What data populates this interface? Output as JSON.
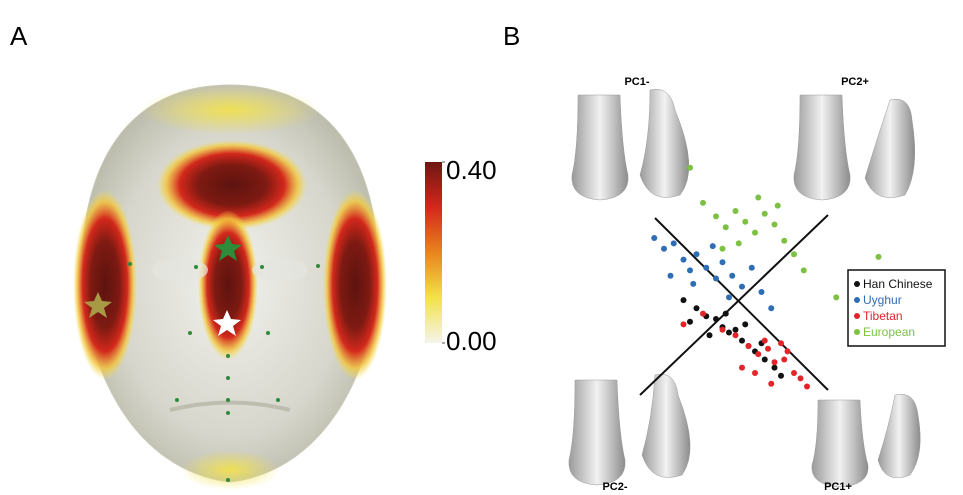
{
  "panel_labels": [
    "A",
    "B"
  ],
  "chart_data": [
    {
      "type": "colorbar",
      "clim": [
        0,
        0.4
      ],
      "cticks": [
        {
          "value": 0.4,
          "label": "0.40"
        },
        {
          "value": 0,
          "label": "0.00"
        }
      ],
      "colors": [
        "#f4f4ec",
        "#f3e24a",
        "#e8841e",
        "#d3281c",
        "#6e1712"
      ]
    },
    {
      "type": "scatter",
      "xlim": [
        -4,
        4
      ],
      "ylim": [
        -4,
        5
      ],
      "legend": "right",
      "annotations": [
        "PC1-",
        "PC2+",
        "PC2-",
        "PC1+"
      ],
      "series": [
        {
          "name": "Han Chinese",
          "color": "#111111",
          "x": [
            -2.2,
            -1.8,
            -1.5,
            -1.2,
            -1.0,
            -0.8,
            -0.6,
            -0.4,
            -0.2,
            0.0,
            0.3,
            0.6,
            -1.4,
            -0.9,
            -0.3,
            0.2,
            -2.0,
            0.8
          ],
          "y": [
            -0.3,
            -0.6,
            -0.9,
            -1.0,
            -1.3,
            -1.5,
            -1.4,
            -1.8,
            -2.0,
            -2.2,
            -2.5,
            -2.8,
            -1.6,
            -0.8,
            -1.2,
            -1.9,
            -1.1,
            -3.1
          ]
        },
        {
          "name": "Uyghur",
          "color": "#2f6db5",
          "x": [
            -3.1,
            -2.8,
            -2.5,
            -2.2,
            -2.0,
            -1.8,
            -1.5,
            -1.2,
            -1.0,
            -0.7,
            -0.4,
            -0.1,
            0.2,
            -2.6,
            -1.3,
            -0.8,
            0.5,
            -1.9
          ],
          "y": [
            2.0,
            1.6,
            1.8,
            1.2,
            0.8,
            1.4,
            0.9,
            0.5,
            1.1,
            0.6,
            0.2,
            0.9,
            0.0,
            0.6,
            1.7,
            -0.2,
            -0.6,
            0.3
          ]
        },
        {
          "name": "Tibetan",
          "color": "#e3252a",
          "x": [
            -1.6,
            -1.0,
            -0.6,
            -0.2,
            0.1,
            0.4,
            0.6,
            0.9,
            1.2,
            1.4,
            -0.4,
            0.3,
            0.8,
            1.6,
            -2.2,
            0.0,
            1.0,
            0.5
          ],
          "y": [
            -0.8,
            -1.4,
            -1.6,
            -2.0,
            -2.3,
            -2.1,
            -2.6,
            -2.5,
            -3.0,
            -3.2,
            -2.8,
            -1.8,
            -1.9,
            -3.5,
            -1.2,
            -3.0,
            -2.2,
            -3.4
          ]
        },
        {
          "name": "European",
          "color": "#7cc142",
          "x": [
            -1.6,
            -1.2,
            -0.9,
            -0.6,
            -0.3,
            0.0,
            0.3,
            0.6,
            0.9,
            1.2,
            -0.5,
            0.1,
            0.7,
            -1.0,
            1.5,
            2.5,
            3.8,
            -2.0
          ],
          "y": [
            3.3,
            2.8,
            2.4,
            3.0,
            2.6,
            2.2,
            2.9,
            2.5,
            1.9,
            1.4,
            1.8,
            3.5,
            3.2,
            1.6,
            0.8,
            -0.2,
            1.3,
            4.6
          ]
        }
      ]
    }
  ]
}
